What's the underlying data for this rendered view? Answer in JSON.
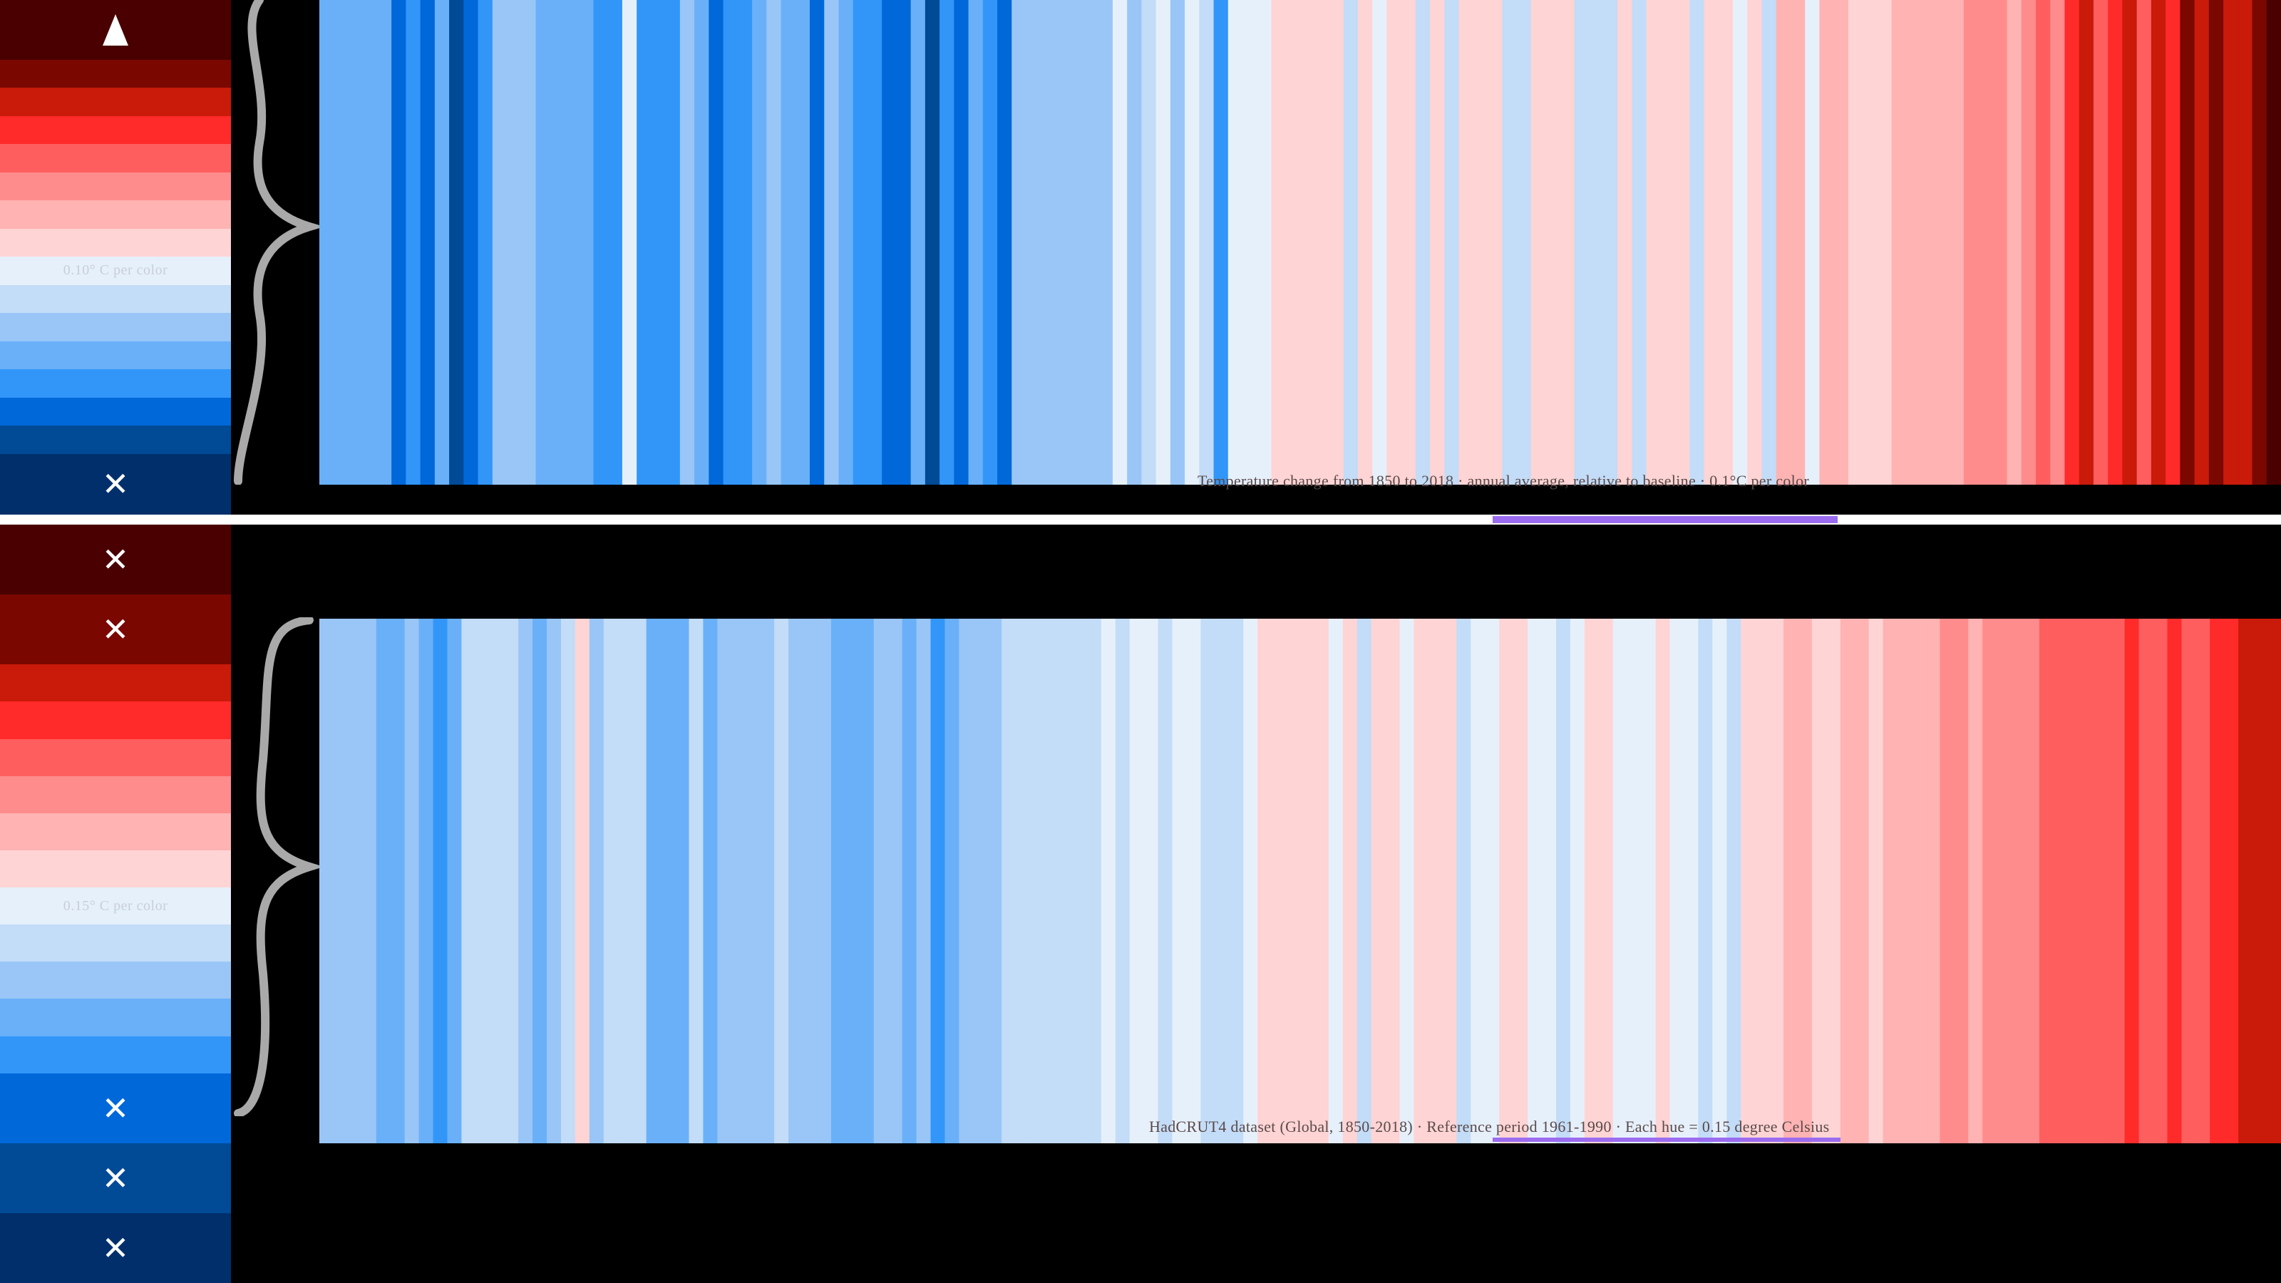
{
  "panels": [
    {
      "id": "annual",
      "legend": {
        "step_label": "0.10° C  per color",
        "swatches": [
          {
            "color": "#4a0000",
            "mark": "triangle-up-icon"
          },
          {
            "color": "#7a0800",
            "mark": ""
          },
          {
            "color": "#c91a0a",
            "mark": ""
          },
          {
            "color": "#ff2a2a",
            "mark": ""
          },
          {
            "color": "#ff5e5e",
            "mark": ""
          },
          {
            "color": "#ff8c8c",
            "mark": ""
          },
          {
            "color": "#ffb3b3",
            "mark": ""
          },
          {
            "color": "#ffd4d4",
            "mark": ""
          },
          {
            "color": "#e6f0fb",
            "mark": "",
            "label": true
          },
          {
            "color": "#c3dcf7",
            "mark": ""
          },
          {
            "color": "#99c6f7",
            "mark": ""
          },
          {
            "color": "#69b0f8",
            "mark": ""
          },
          {
            "color": "#3296f9",
            "mark": ""
          },
          {
            "color": "#0068d9",
            "mark": ""
          },
          {
            "color": "#004a96",
            "mark": ""
          },
          {
            "color": "#002f6c",
            "mark": "cross-icon"
          }
        ]
      },
      "caption": "Temperature change from 1850 to 2018 · annual average, relative to baseline · 0.1°C per color",
      "stripe_colors": [
        "#69b0f8",
        "#69b0f8",
        "#69b0f8",
        "#69b0f8",
        "#69b0f8",
        "#0068d9",
        "#3296f9",
        "#0068d9",
        "#69b0f8",
        "#004a96",
        "#0068d9",
        "#3296f9",
        "#99c6f7",
        "#99c6f7",
        "#99c6f7",
        "#69b0f8",
        "#69b0f8",
        "#69b0f8",
        "#69b0f8",
        "#3296f9",
        "#3296f9",
        "#e6f0fb",
        "#3296f9",
        "#3296f9",
        "#3296f9",
        "#99c6f7",
        "#69b0f8",
        "#0068d9",
        "#3296f9",
        "#3296f9",
        "#69b0f8",
        "#99c6f7",
        "#69b0f8",
        "#69b0f8",
        "#0068d9",
        "#99c6f7",
        "#69b0f8",
        "#3296f9",
        "#3296f9",
        "#0068d9",
        "#0068d9",
        "#69b0f8",
        "#004a96",
        "#3296f9",
        "#0068d9",
        "#69b0f8",
        "#3296f9",
        "#0068d9",
        "#99c6f7",
        "#99c6f7",
        "#99c6f7",
        "#99c6f7",
        "#99c6f7",
        "#99c6f7",
        "#99c6f7",
        "#e6f0fb",
        "#99c6f7",
        "#c3dcf7",
        "#e6f0fb",
        "#99c6f7",
        "#e6f0fb",
        "#c3dcf7",
        "#3296f9",
        "#e6f0fb",
        "#e6f0fb",
        "#e6f0fb",
        "#ffd4d4",
        "#ffd4d4",
        "#ffd4d4",
        "#ffd4d4",
        "#ffd4d4",
        "#c3dcf7",
        "#ffd4d4",
        "#e6f0fb",
        "#ffd4d4",
        "#ffd4d4",
        "#c3dcf7",
        "#ffd4d4",
        "#c3dcf7",
        "#ffd4d4",
        "#ffd4d4",
        "#ffd4d4",
        "#c3dcf7",
        "#c3dcf7",
        "#ffd4d4",
        "#ffd4d4",
        "#ffd4d4",
        "#c3dcf7",
        "#c3dcf7",
        "#c3dcf7",
        "#ffd4d4",
        "#c3dcf7",
        "#ffd4d4",
        "#ffd4d4",
        "#ffd4d4",
        "#c3dcf7",
        "#ffd4d4",
        "#ffd4d4",
        "#e6f0fb",
        "#ffd4d4",
        "#c3dcf7",
        "#ffb3b3",
        "#ffb3b3",
        "#e6f0fb",
        "#ffb3b3",
        "#ffb3b3",
        "#ffd4d4",
        "#ffd4d4",
        "#ffd4d4",
        "#ffb3b3",
        "#ffb3b3",
        "#ffb3b3",
        "#ffb3b3",
        "#ffb3b3",
        "#ff8c8c",
        "#ff8c8c",
        "#ff8c8c",
        "#ffb3b3",
        "#ff8c8c",
        "#ff5e5e",
        "#ff8c8c",
        "#ff2a2a",
        "#c91a0a",
        "#ff5e5e",
        "#ff2a2a",
        "#c91a0a",
        "#ff5e5e",
        "#c91a0a",
        "#ff2a2a",
        "#7a0800",
        "#c91a0a",
        "#7a0800",
        "#c91a0a",
        "#c91a0a",
        "#7a0800",
        "#4a0000"
      ]
    },
    {
      "id": "fivey",
      "legend": {
        "step_label": "0.15° C  per color",
        "swatches": [
          {
            "color": "#4a0000",
            "mark": "cross-icon"
          },
          {
            "color": "#7a0800",
            "mark": "cross-icon"
          },
          {
            "color": "#c91a0a",
            "mark": ""
          },
          {
            "color": "#ff2a2a",
            "mark": ""
          },
          {
            "color": "#ff5e5e",
            "mark": ""
          },
          {
            "color": "#ff8c8c",
            "mark": ""
          },
          {
            "color": "#ffb3b3",
            "mark": ""
          },
          {
            "color": "#ffd4d4",
            "mark": ""
          },
          {
            "color": "#e6f0fb",
            "mark": "",
            "label": true
          },
          {
            "color": "#c3dcf7",
            "mark": ""
          },
          {
            "color": "#99c6f7",
            "mark": ""
          },
          {
            "color": "#69b0f8",
            "mark": ""
          },
          {
            "color": "#3296f9",
            "mark": ""
          },
          {
            "color": "#0068d9",
            "mark": "cross-icon"
          },
          {
            "color": "#004a96",
            "mark": "cross-icon"
          },
          {
            "color": "#002f6c",
            "mark": "cross-icon"
          }
        ]
      },
      "caption": "HadCRUT4 dataset (Global, 1850-2018) · Reference period 1961-1990 · Each hue = 0.15 degree Celsius",
      "stripe_colors": [
        "#99c6f7",
        "#99c6f7",
        "#99c6f7",
        "#99c6f7",
        "#69b0f8",
        "#69b0f8",
        "#99c6f7",
        "#69b0f8",
        "#3296f9",
        "#69b0f8",
        "#c3dcf7",
        "#c3dcf7",
        "#c3dcf7",
        "#c3dcf7",
        "#99c6f7",
        "#69b0f8",
        "#99c6f7",
        "#c3dcf7",
        "#ffd4d4",
        "#99c6f7",
        "#c3dcf7",
        "#c3dcf7",
        "#c3dcf7",
        "#69b0f8",
        "#69b0f8",
        "#69b0f8",
        "#c3dcf7",
        "#69b0f8",
        "#99c6f7",
        "#99c6f7",
        "#99c6f7",
        "#99c6f7",
        "#c3dcf7",
        "#99c6f7",
        "#99c6f7",
        "#99c6f7",
        "#69b0f8",
        "#69b0f8",
        "#69b0f8",
        "#99c6f7",
        "#99c6f7",
        "#69b0f8",
        "#99c6f7",
        "#3296f9",
        "#69b0f8",
        "#99c6f7",
        "#99c6f7",
        "#99c6f7",
        "#c3dcf7",
        "#c3dcf7",
        "#c3dcf7",
        "#c3dcf7",
        "#c3dcf7",
        "#c3dcf7",
        "#c3dcf7",
        "#e6f0fb",
        "#c3dcf7",
        "#e6f0fb",
        "#e6f0fb",
        "#c3dcf7",
        "#e6f0fb",
        "#e6f0fb",
        "#c3dcf7",
        "#c3dcf7",
        "#c3dcf7",
        "#e6f0fb",
        "#ffd4d4",
        "#ffd4d4",
        "#ffd4d4",
        "#ffd4d4",
        "#ffd4d4",
        "#e6f0fb",
        "#ffd4d4",
        "#c3dcf7",
        "#ffd4d4",
        "#ffd4d4",
        "#e6f0fb",
        "#ffd4d4",
        "#ffd4d4",
        "#ffd4d4",
        "#c3dcf7",
        "#e6f0fb",
        "#e6f0fb",
        "#ffd4d4",
        "#ffd4d4",
        "#e6f0fb",
        "#e6f0fb",
        "#c3dcf7",
        "#e6f0fb",
        "#ffd4d4",
        "#ffd4d4",
        "#e6f0fb",
        "#e6f0fb",
        "#e6f0fb",
        "#ffd4d4",
        "#e6f0fb",
        "#e6f0fb",
        "#c3dcf7",
        "#e6f0fb",
        "#c3dcf7",
        "#ffd4d4",
        "#ffd4d4",
        "#ffd4d4",
        "#ffb3b3",
        "#ffb3b3",
        "#ffd4d4",
        "#ffd4d4",
        "#ffb3b3",
        "#ffb3b3",
        "#ffd4d4",
        "#ffb3b3",
        "#ffb3b3",
        "#ffb3b3",
        "#ffb3b3",
        "#ff8c8c",
        "#ff8c8c",
        "#ffb3b3",
        "#ff8c8c",
        "#ff8c8c",
        "#ff8c8c",
        "#ff8c8c",
        "#ff5e5e",
        "#ff5e5e",
        "#ff5e5e",
        "#ff5e5e",
        "#ff5e5e",
        "#ff5e5e",
        "#ff2a2a",
        "#ff5e5e",
        "#ff5e5e",
        "#ff2a2a",
        "#ff5e5e",
        "#ff5e5e",
        "#ff2a2a",
        "#ff2a2a",
        "#c91a0a",
        "#c91a0a",
        "#c91a0a"
      ]
    }
  ],
  "highlight_color": "#9b6cf0",
  "chart_data": [
    {
      "type": "heatmap",
      "title": "",
      "xlabel": "",
      "ylabel": "",
      "legend_step": "0.10° C  per color",
      "grid": false,
      "legend_placement": "left"
    },
    {
      "type": "heatmap",
      "title": "",
      "xlabel": "",
      "ylabel": "",
      "legend_step": "0.15° C  per color",
      "grid": false,
      "legend_placement": "left"
    }
  ]
}
